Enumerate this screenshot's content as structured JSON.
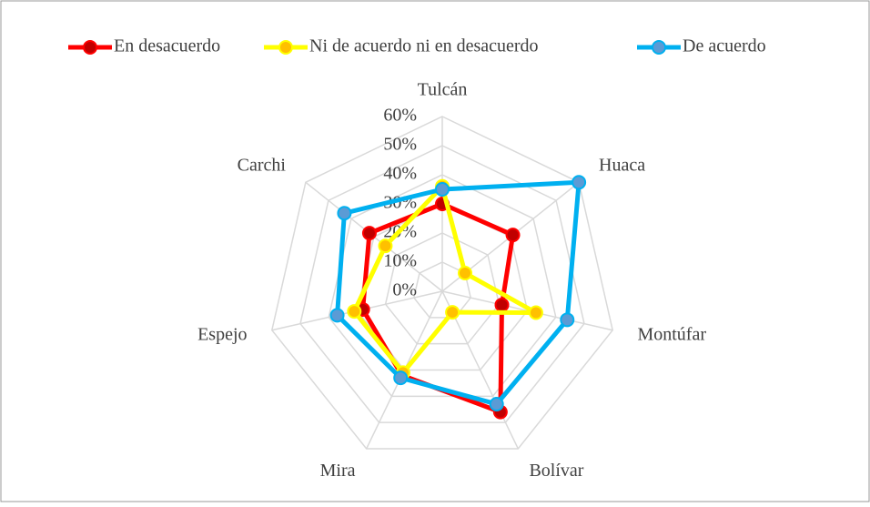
{
  "chart_data": {
    "type": "radar",
    "categories": [
      "Tulcán",
      "Huaca",
      "Montúfar",
      "Bolívar",
      "Mira",
      "Espejo",
      "Carchi"
    ],
    "series": [
      {
        "name": "En desacuerdo",
        "color": "#ff0000",
        "marker": "#c00000",
        "values": [
          30,
          31,
          21,
          46,
          32,
          28,
          32
        ]
      },
      {
        "name": "Ni de acuerdo ni en desacuerdo",
        "color": "#ffff00",
        "marker": "#ffc000",
        "values": [
          36,
          10,
          33,
          8,
          31,
          31,
          25
        ]
      },
      {
        "name": "De acuerdo",
        "color": "#00b0f0",
        "marker": "#5b9bd5",
        "values": [
          35,
          60,
          44,
          43,
          33,
          37,
          43
        ]
      }
    ],
    "ylim": [
      0,
      60
    ],
    "yticks": [
      {
        "value": 0,
        "label": "0%"
      },
      {
        "value": 10,
        "label": "10%"
      },
      {
        "value": 20,
        "label": "20%"
      },
      {
        "value": 30,
        "label": "30%"
      },
      {
        "value": 40,
        "label": "40%"
      },
      {
        "value": 50,
        "label": "50%"
      },
      {
        "value": 60,
        "label": "60%"
      }
    ],
    "grid": true,
    "legend": "top"
  }
}
